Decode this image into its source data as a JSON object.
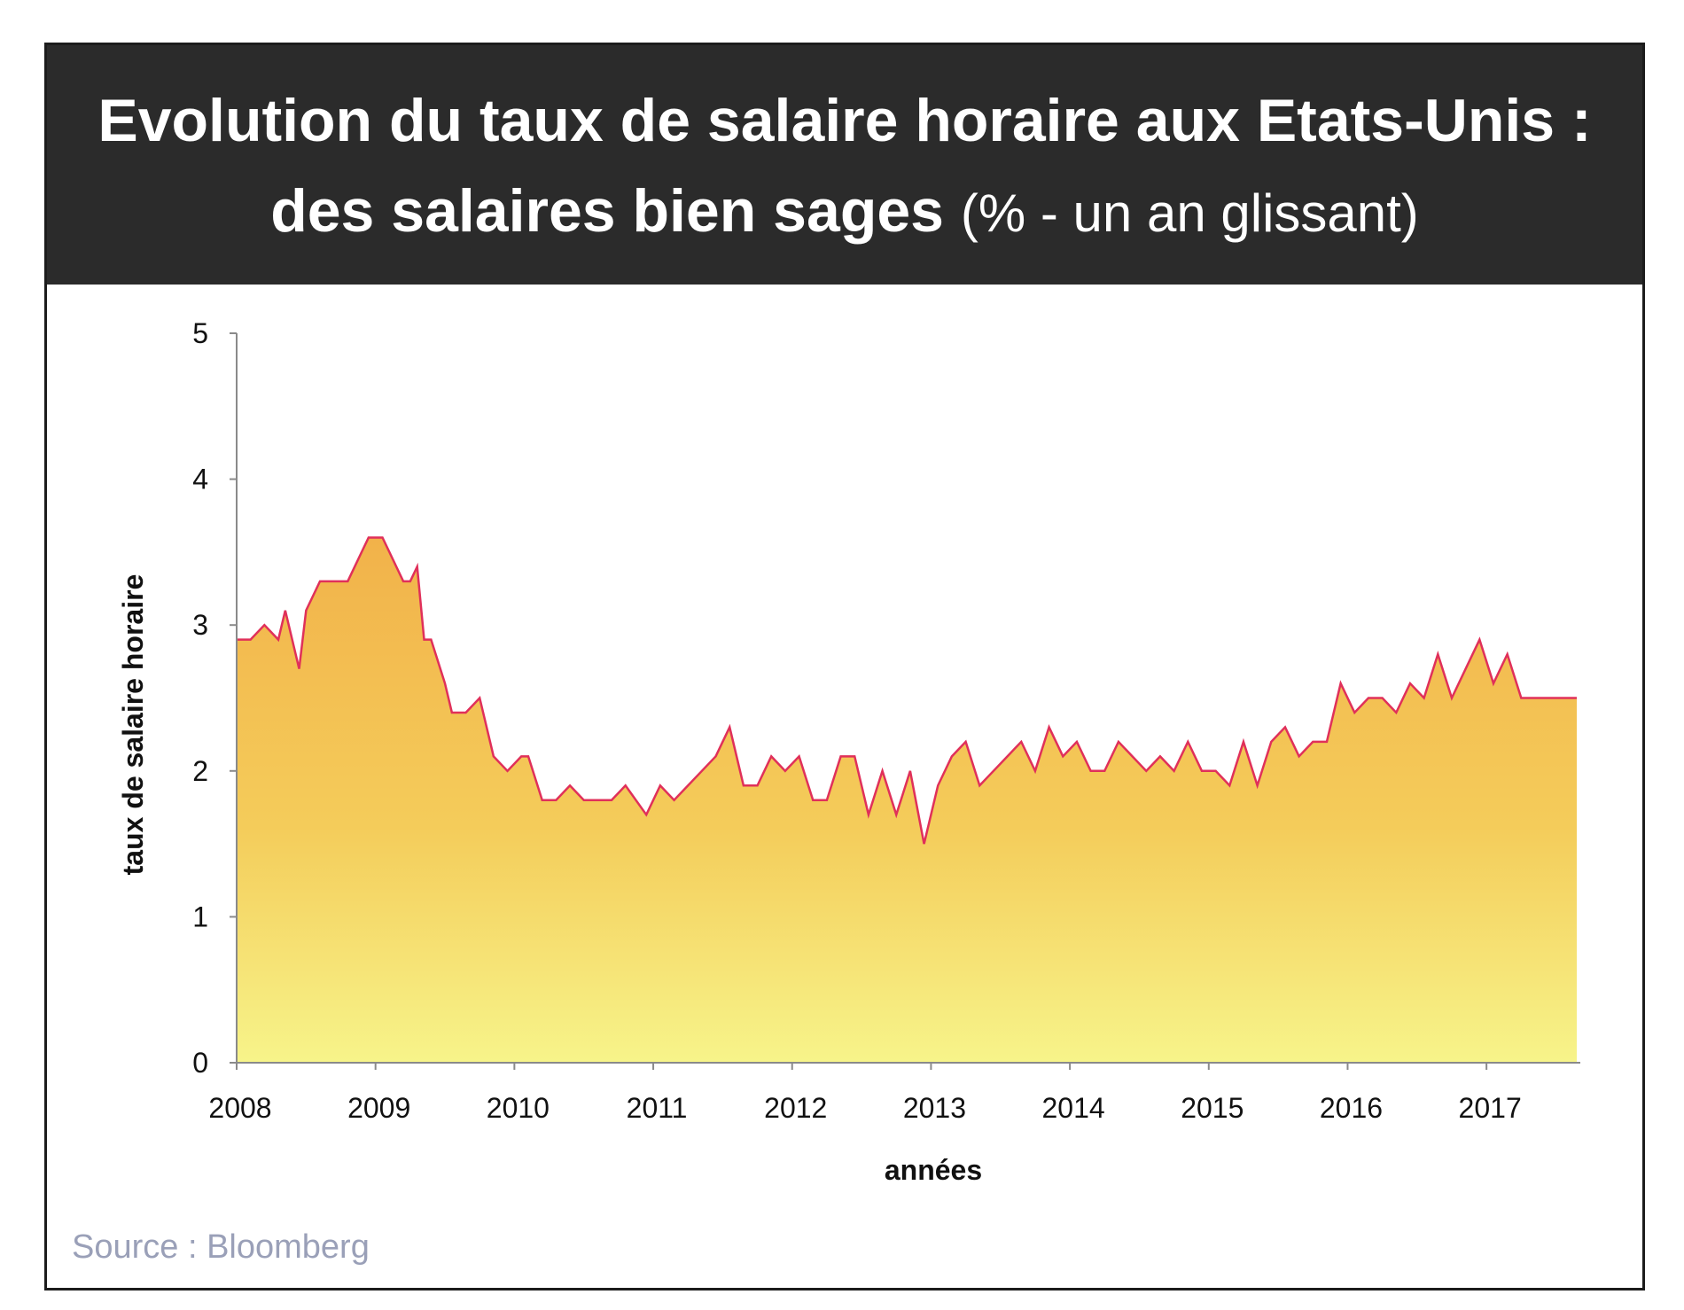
{
  "header": {
    "title_line1": "Evolution du taux de salaire horaire aux Etats-Unis :",
    "title_line2_bold": "des salaires bien sages",
    "title_line2_regular": "(% - un an glissant)"
  },
  "source": "Source : Bloomberg",
  "colors": {
    "header_bg": "#2b2b2b",
    "line": "#e0305a",
    "fill_top": "#f2b24a",
    "fill_bottom": "#f7f48a"
  },
  "chart_data": {
    "type": "area",
    "xlabel": "années",
    "ylabel": "taux de salaire horaire",
    "xlim": [
      2008,
      2017.65
    ],
    "ylim": [
      0,
      5
    ],
    "yticks": [
      0,
      1,
      2,
      3,
      4,
      5
    ],
    "xticks": [
      2008,
      2009,
      2010,
      2011,
      2012,
      2013,
      2014,
      2015,
      2016,
      2017
    ],
    "grid": false,
    "x": [
      2008.0,
      2008.1,
      2008.2,
      2008.3,
      2008.35,
      2008.45,
      2008.5,
      2008.6,
      2008.7,
      2008.8,
      2008.9,
      2008.95,
      2009.0,
      2009.05,
      2009.1,
      2009.15,
      2009.2,
      2009.25,
      2009.3,
      2009.35,
      2009.4,
      2009.5,
      2009.55,
      2009.65,
      2009.75,
      2009.85,
      2009.95,
      2010.05,
      2010.1,
      2010.2,
      2010.3,
      2010.4,
      2010.5,
      2010.6,
      2010.7,
      2010.8,
      2010.95,
      2011.05,
      2011.15,
      2011.25,
      2011.35,
      2011.45,
      2011.55,
      2011.65,
      2011.75,
      2011.85,
      2011.95,
      2012.05,
      2012.15,
      2012.25,
      2012.35,
      2012.45,
      2012.55,
      2012.65,
      2012.75,
      2012.85,
      2012.95,
      2013.05,
      2013.15,
      2013.25,
      2013.35,
      2013.45,
      2013.55,
      2013.65,
      2013.75,
      2013.85,
      2013.95,
      2014.05,
      2014.15,
      2014.25,
      2014.35,
      2014.45,
      2014.55,
      2014.65,
      2014.75,
      2014.85,
      2014.95,
      2015.05,
      2015.15,
      2015.25,
      2015.35,
      2015.45,
      2015.55,
      2015.65,
      2015.75,
      2015.85,
      2015.95,
      2016.05,
      2016.15,
      2016.25,
      2016.35,
      2016.45,
      2016.55,
      2016.65,
      2016.75,
      2016.85,
      2016.95,
      2017.05,
      2017.15,
      2017.25,
      2017.35,
      2017.45,
      2017.55,
      2017.65
    ],
    "y": [
      2.9,
      2.9,
      3.0,
      2.9,
      3.1,
      2.7,
      3.1,
      3.3,
      3.3,
      3.3,
      3.5,
      3.6,
      3.6,
      3.6,
      3.5,
      3.4,
      3.3,
      3.3,
      3.4,
      2.9,
      2.9,
      2.6,
      2.4,
      2.4,
      2.5,
      2.1,
      2.0,
      2.1,
      2.1,
      1.8,
      1.8,
      1.9,
      1.8,
      1.8,
      1.8,
      1.9,
      1.7,
      1.9,
      1.8,
      1.9,
      2.0,
      2.1,
      2.3,
      1.9,
      1.9,
      2.1,
      2.0,
      2.1,
      1.8,
      1.8,
      2.1,
      2.1,
      1.7,
      2.0,
      1.7,
      2.0,
      1.5,
      1.9,
      2.1,
      2.2,
      1.9,
      2.0,
      2.1,
      2.2,
      2.0,
      2.3,
      2.1,
      2.2,
      2.0,
      2.0,
      2.2,
      2.1,
      2.0,
      2.1,
      2.0,
      2.2,
      2.0,
      2.0,
      1.9,
      2.2,
      1.9,
      2.2,
      2.3,
      2.1,
      2.2,
      2.2,
      2.6,
      2.4,
      2.5,
      2.5,
      2.4,
      2.6,
      2.5,
      2.8,
      2.5,
      2.7,
      2.9,
      2.6,
      2.8,
      2.5,
      2.5,
      2.5,
      2.5,
      2.5
    ]
  }
}
